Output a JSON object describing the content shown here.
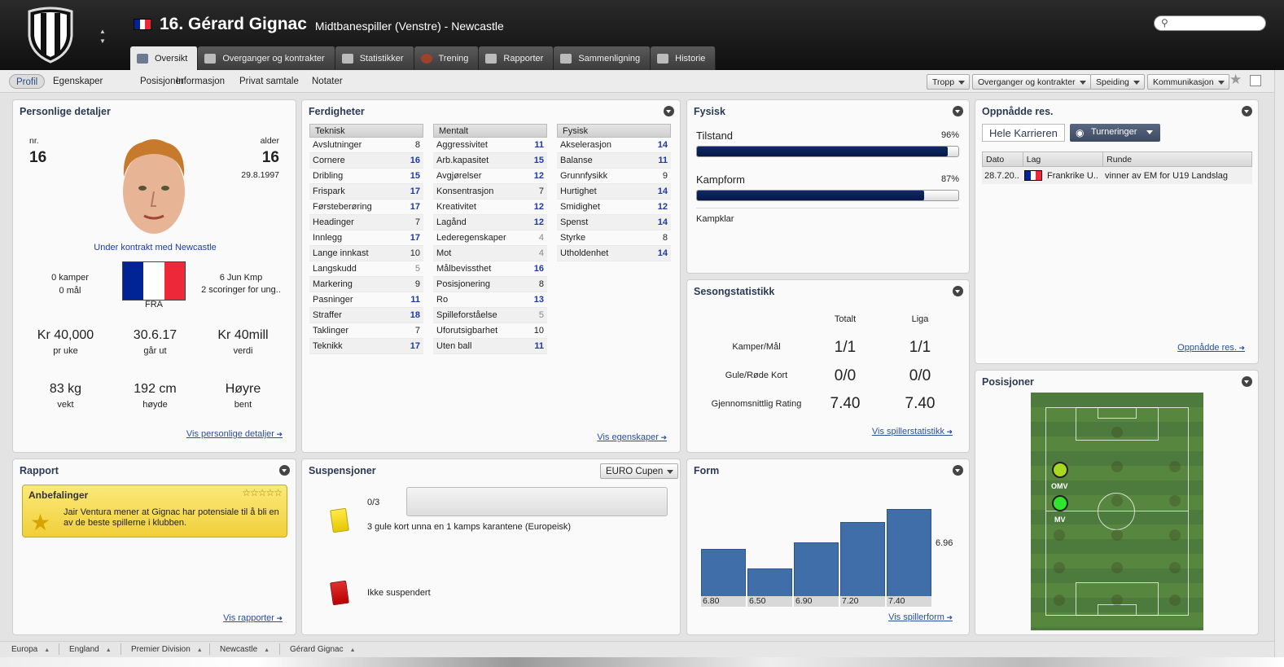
{
  "header": {
    "number_name": "16. Gérard Gignac",
    "role": "Midtbanespiller (Venstre) - Newcastle",
    "flag_colors": [
      "#002395",
      "#ffffff",
      "#ed2939"
    ]
  },
  "tabs": [
    {
      "label": "Oversikt",
      "active": true,
      "icon": "overview-icon"
    },
    {
      "label": "Overganger og kontrakter",
      "active": false,
      "icon": "contract-icon"
    },
    {
      "label": "Statistikker",
      "active": false,
      "icon": "stats-icon"
    },
    {
      "label": "Trening",
      "active": false,
      "icon": "training-icon"
    },
    {
      "label": "Rapporter",
      "active": false,
      "icon": "reports-icon"
    },
    {
      "label": "Sammenligning",
      "active": false,
      "icon": "compare-icon"
    },
    {
      "label": "Historie",
      "active": false,
      "icon": "history-icon"
    }
  ],
  "subnav": {
    "items": [
      "Profil",
      "Egenskaper",
      "Posisjoner",
      "Informasjon",
      "Privat samtale",
      "Notater"
    ],
    "dropdowns": [
      "Tropp",
      "Overganger og kontrakter",
      "Speiding",
      "Kommunikasjon"
    ]
  },
  "personal": {
    "title": "Personlige detaljer",
    "nr_label": "nr.",
    "nr": "16",
    "age_label": "alder",
    "age": "16",
    "dob": "29.8.1997",
    "contract": "Under kontrakt med Newcastle",
    "apps": "0 kamper",
    "goals": "0 mål",
    "nation": "FRA",
    "intl1": "6 Jun Kmp",
    "intl2": "2 scoringer for ung..",
    "wage": "Kr 40,000",
    "wage_lbl": "pr uke",
    "expires": "30.6.17",
    "expires_lbl": "går ut",
    "value": "Kr 40mill",
    "value_lbl": "verdi",
    "weight": "83 kg",
    "weight_lbl": "vekt",
    "height": "192 cm",
    "height_lbl": "høyde",
    "foot": "Høyre",
    "foot_lbl": "bent",
    "link": "Vis personlige detaljer"
  },
  "skills": {
    "title": "Ferdigheter",
    "link": "Vis egenskaper",
    "groups": [
      {
        "name": "Teknisk",
        "rows": [
          [
            "Avslutninger",
            "8"
          ],
          [
            "Cornere",
            "16"
          ],
          [
            "Dribling",
            "15"
          ],
          [
            "Frispark",
            "17"
          ],
          [
            "Førsteberøring",
            "17"
          ],
          [
            "Headinger",
            "7"
          ],
          [
            "Innlegg",
            "17"
          ],
          [
            "Lange innkast",
            "10"
          ],
          [
            "Langskudd",
            "5"
          ],
          [
            "Markering",
            "9"
          ],
          [
            "Pasninger",
            "11"
          ],
          [
            "Straffer",
            "18"
          ],
          [
            "Taklinger",
            "7"
          ],
          [
            "Teknikk",
            "17"
          ]
        ]
      },
      {
        "name": "Mentalt",
        "rows": [
          [
            "Aggressivitet",
            "11"
          ],
          [
            "Arb.kapasitet",
            "15"
          ],
          [
            "Avgjørelser",
            "12"
          ],
          [
            "Konsentrasjon",
            "7"
          ],
          [
            "Kreativitet",
            "12"
          ],
          [
            "Lagånd",
            "12"
          ],
          [
            "Lederegenskaper",
            "4"
          ],
          [
            "Mot",
            "4"
          ],
          [
            "Målbevissthet",
            "16"
          ],
          [
            "Posisjonering",
            "8"
          ],
          [
            "Ro",
            "13"
          ],
          [
            "Spilleforståelse",
            "5"
          ],
          [
            "Uforutsigbarhet",
            "10"
          ],
          [
            "Uten ball",
            "11"
          ]
        ]
      },
      {
        "name": "Fysisk",
        "rows": [
          [
            "Akselerasjon",
            "14"
          ],
          [
            "Balanse",
            "11"
          ],
          [
            "Grunnfysikk",
            "9"
          ],
          [
            "Hurtighet",
            "14"
          ],
          [
            "Smidighet",
            "12"
          ],
          [
            "Spenst",
            "14"
          ],
          [
            "Styrke",
            "8"
          ],
          [
            "Utholdenhet",
            "14"
          ]
        ]
      }
    ]
  },
  "physical": {
    "title": "Fysisk",
    "condition_label": "Tilstand",
    "condition": "96%",
    "condition_value": 0.96,
    "form_label": "Kampform",
    "form": "87%",
    "form_value": 0.87,
    "status": "Kampklar"
  },
  "season": {
    "title": "Sesongstatistikk",
    "col1": "Totalt",
    "col2": "Liga",
    "rows": [
      [
        "Kamper/Mål",
        "1/1",
        "1/1"
      ],
      [
        "Gule/Røde Kort",
        "0/0",
        "0/0"
      ],
      [
        "Gjennomsnittlig Rating",
        "7.40",
        "7.40"
      ]
    ],
    "link": "Vis spillerstatistikk"
  },
  "honours": {
    "title": "Oppnådde res.",
    "tab1": "Hele Karrieren",
    "tab2": "Turneringer",
    "cols": [
      "Dato",
      "Lag",
      "Runde"
    ],
    "row": [
      "28.7.20..",
      "Frankrike U..",
      "vinner av EM for U19 Landslag"
    ],
    "link": "Oppnådde res."
  },
  "positions": {
    "title": "Posisjoner",
    "pos1": "OMV",
    "pos2": "MV"
  },
  "report": {
    "title": "Rapport",
    "rec_title": "Anbefalinger",
    "rec_text": "Jair Ventura mener at Gignac har potensiale til å bli en av de beste spillerne i klubben.",
    "stars": "☆☆☆☆☆",
    "link": "Vis rapporter"
  },
  "suspensions": {
    "title": "Suspensjoner",
    "competition": "EURO Cupen",
    "yellow_count": "0/3",
    "yellow_text": "3 gule kort unna en 1 kamps karantene (Europeisk)",
    "red_text": "Ikke suspendert"
  },
  "form": {
    "title": "Form",
    "avg": "6.96",
    "link": "Vis spillerform",
    "ratings": [
      "6.80",
      "6.50",
      "6.90",
      "7.20",
      "7.40"
    ]
  },
  "chart_data": {
    "type": "bar",
    "categories": [
      "1",
      "2",
      "3",
      "4",
      "5"
    ],
    "values": [
      6.8,
      6.5,
      6.9,
      7.2,
      7.4
    ],
    "title": "Form",
    "ylabel": "",
    "xlabel": ""
  },
  "breadcrumbs": [
    "Europa",
    "England",
    "Premier Division",
    "Newcastle",
    "Gérard Gignac"
  ]
}
